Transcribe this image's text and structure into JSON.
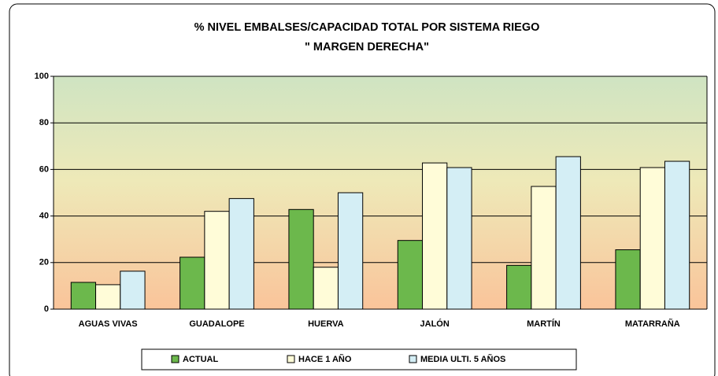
{
  "chart_data": {
    "type": "bar",
    "title": "% NIVEL EMBALSES/CAPACIDAD TOTAL POR SISTEMA  RIEGO",
    "subtitle": "\" MARGEN DERECHA\"",
    "categories": [
      "AGUAS VIVAS",
      "GUADALOPE",
      "HUERVA",
      "JALÓN",
      "MARTÍN",
      "MATARRAÑA"
    ],
    "series": [
      {
        "name": "ACTUAL",
        "color": "#6cb84c",
        "values": [
          11.5,
          22.3,
          42.8,
          29.5,
          18.8,
          25.5
        ]
      },
      {
        "name": "HACE 1 AÑO",
        "color": "#fffcd8",
        "values": [
          10.5,
          42,
          18,
          62.8,
          52.7,
          60.8
        ]
      },
      {
        "name": "MEDIA  ULTI. 5 AÑOS",
        "color": "#d4eef5",
        "values": [
          16.3,
          47.5,
          50,
          60.8,
          65.5,
          63.5
        ]
      }
    ],
    "ylim": [
      0,
      100
    ],
    "yticks": [
      0,
      20,
      40,
      60,
      80,
      100
    ],
    "grid": true,
    "legend": "bottom"
  }
}
